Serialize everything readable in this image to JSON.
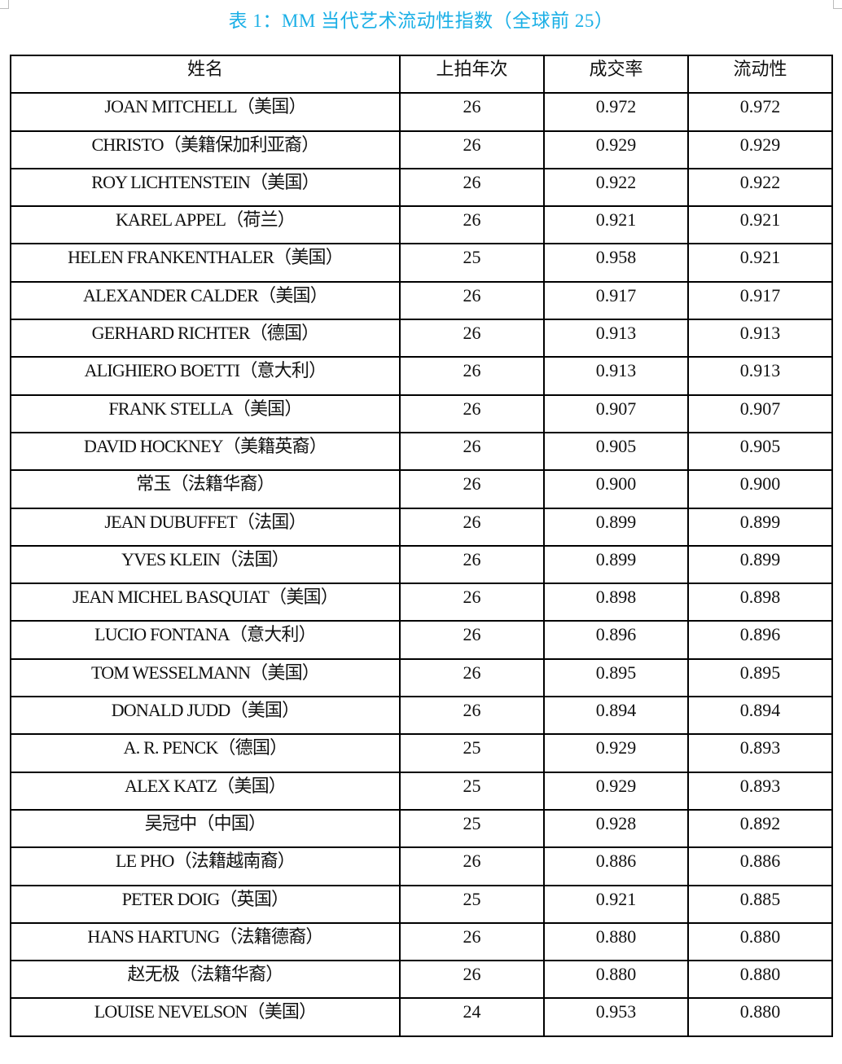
{
  "title": "表 1：MM 当代艺术流动性指数（全球前 25）",
  "colors": {
    "title": "#1AAFE6",
    "border": "#000000"
  },
  "table": {
    "headers": [
      "姓名",
      "上拍年次",
      "成交率",
      "流动性"
    ],
    "rows": [
      [
        "JOAN MITCHELL（美国）",
        "26",
        "0.972",
        "0.972"
      ],
      [
        "CHRISTO（美籍保加利亚裔）",
        "26",
        "0.929",
        "0.929"
      ],
      [
        "ROY LICHTENSTEIN（美国）",
        "26",
        "0.922",
        "0.922"
      ],
      [
        "KAREL APPEL（荷兰）",
        "26",
        "0.921",
        "0.921"
      ],
      [
        "HELEN FRANKENTHALER（美国）",
        "25",
        "0.958",
        "0.921"
      ],
      [
        "ALEXANDER CALDER（美国）",
        "26",
        "0.917",
        "0.917"
      ],
      [
        "GERHARD RICHTER（德国）",
        "26",
        "0.913",
        "0.913"
      ],
      [
        "ALIGHIERO BOETTI（意大利）",
        "26",
        "0.913",
        "0.913"
      ],
      [
        "FRANK STELLA（美国）",
        "26",
        "0.907",
        "0.907"
      ],
      [
        "DAVID HOCKNEY（美籍英裔）",
        "26",
        "0.905",
        "0.905"
      ],
      [
        "常玉（法籍华裔）",
        "26",
        "0.900",
        "0.900"
      ],
      [
        "JEAN DUBUFFET（法国）",
        "26",
        "0.899",
        "0.899"
      ],
      [
        "YVES KLEIN（法国）",
        "26",
        "0.899",
        "0.899"
      ],
      [
        "JEAN MICHEL BASQUIAT（美国）",
        "26",
        "0.898",
        "0.898"
      ],
      [
        "LUCIO FONTANA（意大利）",
        "26",
        "0.896",
        "0.896"
      ],
      [
        "TOM WESSELMANN（美国）",
        "26",
        "0.895",
        "0.895"
      ],
      [
        "DONALD JUDD（美国）",
        "26",
        "0.894",
        "0.894"
      ],
      [
        "A. R. PENCK（德国）",
        "25",
        "0.929",
        "0.893"
      ],
      [
        "ALEX KATZ（美国）",
        "25",
        "0.929",
        "0.893"
      ],
      [
        "吴冠中（中国）",
        "25",
        "0.928",
        "0.892"
      ],
      [
        "LE PHO（法籍越南裔）",
        "26",
        "0.886",
        "0.886"
      ],
      [
        "PETER DOIG（英国）",
        "25",
        "0.921",
        "0.885"
      ],
      [
        "HANS HARTUNG（法籍德裔）",
        "26",
        "0.880",
        "0.880"
      ],
      [
        "赵无极（法籍华裔）",
        "26",
        "0.880",
        "0.880"
      ],
      [
        "LOUISE NEVELSON（美国）",
        "24",
        "0.953",
        "0.880"
      ]
    ]
  }
}
